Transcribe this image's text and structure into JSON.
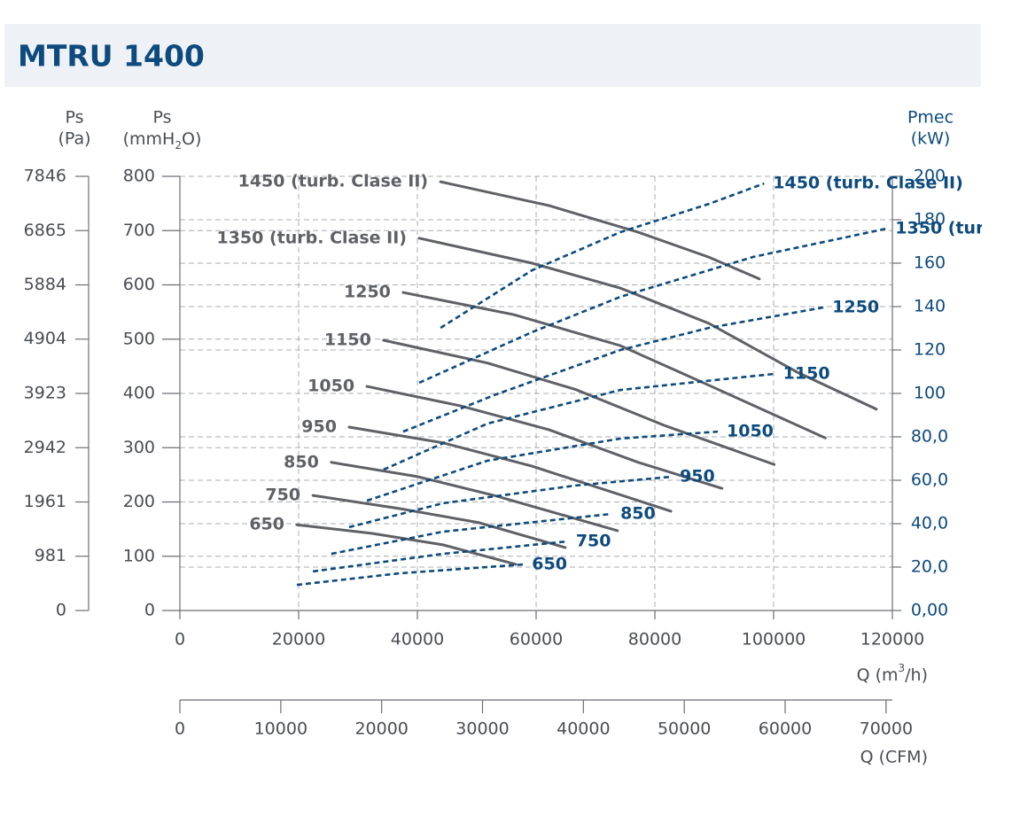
{
  "chart_data": {
    "type": "line",
    "title": "MTRU 1400",
    "xlim": [
      0,
      120000
    ],
    "xticks": [
      0,
      20000,
      40000,
      60000,
      80000,
      100000,
      120000
    ],
    "x_label": [
      "Q (m",
      "3",
      "/h)"
    ],
    "x2lim": [
      0,
      70629
    ],
    "x2ticks": [
      0,
      10000,
      20000,
      30000,
      40000,
      50000,
      60000,
      70000
    ],
    "x2_label": "Q (CFM)",
    "ylim": [
      0,
      800
    ],
    "yticks": [
      0,
      100,
      200,
      300,
      400,
      500,
      600,
      700,
      800
    ],
    "y_label": [
      "Ps",
      "(mmH",
      "2",
      "O)"
    ],
    "y3lim": [
      0,
      7846
    ],
    "y3ticks": [
      0,
      981,
      1961,
      2942,
      3923,
      4904,
      5884,
      6865,
      7846
    ],
    "y3_label": [
      "Ps",
      "(Pa)"
    ],
    "y2lim": [
      0,
      200
    ],
    "y2ticks": [
      {
        "value": 0,
        "label": "0,00"
      },
      {
        "value": 20,
        "label": "20,0"
      },
      {
        "value": 40,
        "label": "40,0"
      },
      {
        "value": 60,
        "label": "60,0"
      },
      {
        "value": 80,
        "label": "80,0"
      },
      100,
      120,
      140,
      160,
      180,
      200
    ],
    "y2_label": [
      "Pmec",
      "(kW)"
    ],
    "grid": true,
    "series": [
      {
        "name": "1450 (turb. Clase II)",
        "color": "#5f6166",
        "x": [
          43900,
          62200,
          77200,
          89100,
          97600
        ],
        "values": [
          790,
          746,
          697,
          651,
          611
        ]
      },
      {
        "name": "1350 (turb. Clase II)",
        "color": "#5f6166",
        "x": [
          40300,
          59300,
          74200,
          89100,
          104000,
          117300
        ],
        "values": [
          686,
          640,
          594,
          529,
          439,
          371
        ]
      },
      {
        "name": "1250",
        "color": "#5f6166",
        "x": [
          37600,
          56300,
          74200,
          89100,
          108700
        ],
        "values": [
          586,
          545,
          488,
          415,
          318
        ]
      },
      {
        "name": "1150",
        "color": "#5f6166",
        "x": [
          34300,
          51800,
          66700,
          81600,
          100100
        ],
        "values": [
          498,
          456,
          407,
          341,
          269
        ]
      },
      {
        "name": "1050",
        "color": "#5f6166",
        "x": [
          31500,
          47300,
          62200,
          77200,
          91300
        ],
        "values": [
          413,
          377,
          333,
          273,
          225
        ]
      },
      {
        "name": "950",
        "color": "#5f6166",
        "x": [
          28500,
          44300,
          59300,
          82700
        ],
        "values": [
          338,
          309,
          266,
          183
        ]
      },
      {
        "name": "850",
        "color": "#5f6166",
        "x": [
          25500,
          39900,
          53300,
          73700
        ],
        "values": [
          273,
          247,
          211,
          147
        ]
      },
      {
        "name": "750",
        "color": "#5f6166",
        "x": [
          22400,
          36900,
          50300,
          64900
        ],
        "values": [
          212,
          188,
          162,
          116
        ]
      },
      {
        "name": "650",
        "color": "#5f6166",
        "x": [
          19700,
          32400,
          44300,
          56600
        ],
        "values": [
          158,
          142,
          121,
          85
        ]
      },
      {
        "name": "1450 (turb. Clase II)",
        "color": "#0d4a7e",
        "axis": "y2",
        "x": [
          43900,
          59300,
          74200,
          89100,
          98400
        ],
        "values": [
          130.2,
          156.7,
          174.3,
          187.3,
          196.7
        ]
      },
      {
        "name": "1350 (turb. Clase II)",
        "color": "#0d4a7e",
        "axis": "y2",
        "x": [
          40300,
          59300,
          74200,
          96600,
          119000
        ],
        "values": [
          104.9,
          128.2,
          144.5,
          162.9,
          175.9
        ]
      },
      {
        "name": "1250",
        "color": "#0d4a7e",
        "axis": "y2",
        "x": [
          37600,
          53300,
          74200,
          89100,
          108400
        ],
        "values": [
          82.4,
          99.6,
          120,
          130.2,
          139.6
        ]
      },
      {
        "name": "1150",
        "color": "#0d4a7e",
        "axis": "y2",
        "x": [
          34300,
          51800,
          74200,
          100100
        ],
        "values": [
          64.9,
          86.1,
          101.6,
          109
        ]
      },
      {
        "name": "1050",
        "color": "#0d4a7e",
        "axis": "y2",
        "x": [
          31500,
          51800,
          74200,
          90600
        ],
        "values": [
          50.6,
          69,
          79.2,
          82.4
        ]
      },
      {
        "name": "950",
        "color": "#0d4a7e",
        "axis": "y2",
        "x": [
          28500,
          44300,
          66700,
          82700
        ],
        "values": [
          38.4,
          49.4,
          57.6,
          61.6
        ]
      },
      {
        "name": "850",
        "color": "#0d4a7e",
        "axis": "y2",
        "x": [
          25500,
          44300,
          72700
        ],
        "values": [
          26.1,
          36.3,
          44.5
        ]
      },
      {
        "name": "750",
        "color": "#0d4a7e",
        "axis": "y2",
        "x": [
          22400,
          44300,
          65200
        ],
        "values": [
          18,
          26.1,
          31.8
        ]
      },
      {
        "name": "650",
        "color": "#0d4a7e",
        "axis": "y2",
        "x": [
          19700,
          36900,
          57800
        ],
        "values": [
          11.8,
          17.1,
          21.2
        ]
      }
    ]
  }
}
